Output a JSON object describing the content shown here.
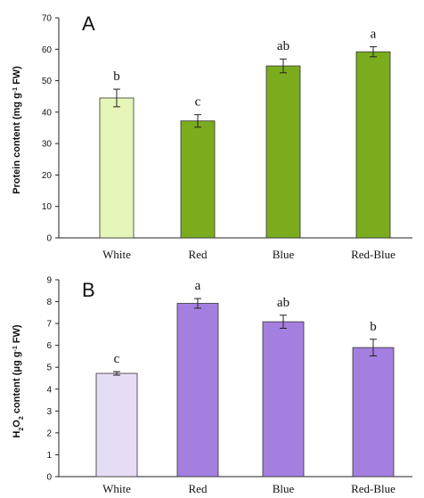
{
  "chart_data": [
    {
      "type": "bar",
      "panel_label": "A",
      "categories": [
        "White",
        "Red",
        "Blue",
        "Red-Blue"
      ],
      "values": [
        44.5,
        37.2,
        54.7,
        59.2
      ],
      "errors": [
        2.8,
        2.0,
        2.2,
        1.6
      ],
      "significance": [
        "b",
        "c",
        "ab",
        "a"
      ],
      "colors": [
        "#e6f5b8",
        "#7aac1e",
        "#7aac1e",
        "#7aac1e"
      ],
      "ylabel_parts": [
        "Protein content (mg g",
        "-1",
        " FW)"
      ],
      "ylim": [
        0,
        70
      ],
      "yticks": [
        0,
        10,
        20,
        30,
        40,
        50,
        60,
        70
      ],
      "grid": false
    },
    {
      "type": "bar",
      "panel_label": "B",
      "categories": [
        "White",
        "Red",
        "Blue",
        "Red-Blue"
      ],
      "values": [
        4.72,
        7.92,
        7.08,
        5.9
      ],
      "errors": [
        0.08,
        0.22,
        0.3,
        0.38
      ],
      "significance": [
        "c",
        "a",
        "ab",
        "b"
      ],
      "colors": [
        "#e7dcf6",
        "#a57fe0",
        "#a57fe0",
        "#a57fe0"
      ],
      "ylabel_parts": [
        "H",
        "2",
        "O",
        "2",
        " content (μg g",
        "-1",
        " FW)"
      ],
      "ylim": [
        0,
        9
      ],
      "yticks": [
        0,
        1,
        2,
        3,
        4,
        5,
        6,
        7,
        8,
        9
      ],
      "grid": false
    }
  ]
}
